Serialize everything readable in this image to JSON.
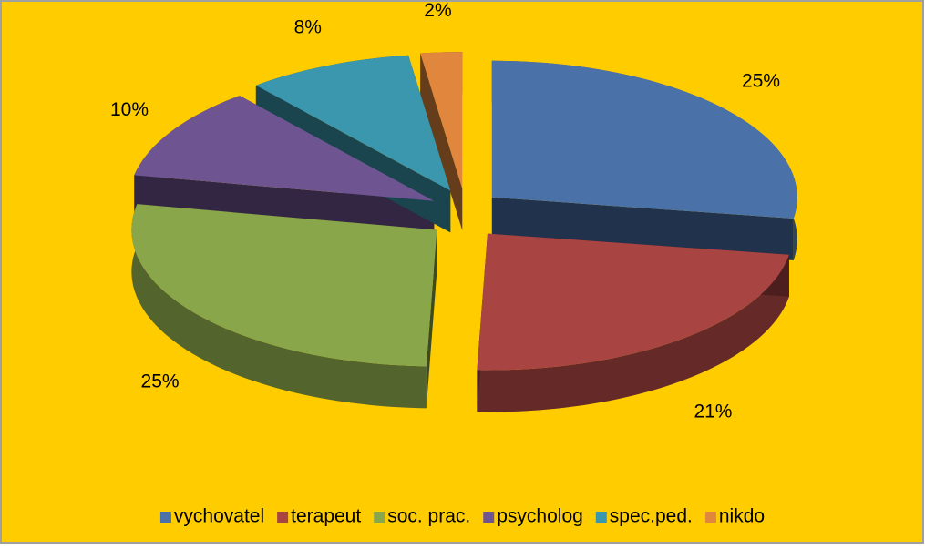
{
  "chart_data": {
    "type": "pie",
    "categories": [
      "vychovatel",
      "terapeut",
      "soc. prac.",
      "psycholog",
      "spec.ped.",
      "nikdo"
    ],
    "values": [
      25,
      21,
      25,
      10,
      8,
      2
    ],
    "value_labels": [
      "25%",
      "21%",
      "25%",
      "10%",
      "8%",
      "2%"
    ],
    "colors": [
      "#4a72a8",
      "#a84442",
      "#8aa64a",
      "#6e5592",
      "#3a97ad",
      "#e0873d"
    ],
    "legend": "bottom"
  }
}
